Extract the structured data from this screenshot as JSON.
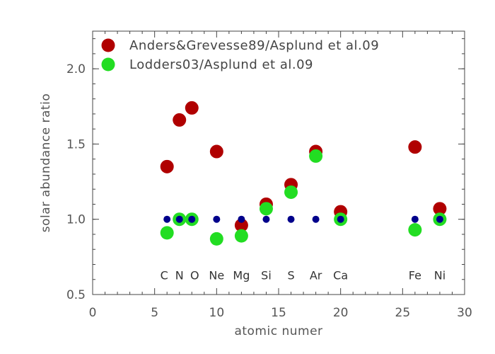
{
  "chart_data": {
    "type": "scatter",
    "xlabel": "atomic numer",
    "ylabel": "solar abundance ratio",
    "xlim": [
      0,
      30
    ],
    "ylim": [
      0.5,
      2.25
    ],
    "x_ticks": [
      0,
      5,
      10,
      15,
      20,
      25,
      30
    ],
    "y_ticks": [
      0.5,
      1.0,
      1.5,
      2.0
    ],
    "y_tick_labels": [
      "0.5",
      "1.0",
      "1.5",
      "2.0"
    ],
    "legend_position": "top-left",
    "element_labels": [
      {
        "x": 6,
        "text": "C"
      },
      {
        "x": 7,
        "text": "N"
      },
      {
        "x": 8,
        "text": "O"
      },
      {
        "x": 10,
        "text": "Ne"
      },
      {
        "x": 12,
        "text": "Mg"
      },
      {
        "x": 14,
        "text": "Si"
      },
      {
        "x": 16,
        "text": "S"
      },
      {
        "x": 18,
        "text": "Ar"
      },
      {
        "x": 20,
        "text": "Ca"
      },
      {
        "x": 26,
        "text": "Fe"
      },
      {
        "x": 28,
        "text": "Ni"
      }
    ],
    "element_label_y": 0.63,
    "series": [
      {
        "name": "Anders&Grevesse89/Asplund et al.09",
        "color": "#b00000",
        "x": [
          6,
          7,
          8,
          10,
          12,
          14,
          16,
          18,
          20,
          26,
          28
        ],
        "y": [
          1.35,
          1.66,
          1.74,
          1.45,
          0.96,
          1.1,
          1.23,
          1.45,
          1.05,
          1.48,
          1.07
        ]
      },
      {
        "name": "Lodders03/Asplund et al.09",
        "color": "#22dd22",
        "x": [
          6,
          7,
          8,
          10,
          12,
          14,
          16,
          18,
          20,
          26,
          28
        ],
        "y": [
          0.91,
          1.0,
          1.0,
          0.87,
          0.89,
          1.07,
          1.18,
          1.42,
          1.0,
          0.93,
          1.0
        ]
      },
      {
        "color": "#00008b",
        "x": [
          6,
          7,
          8,
          10,
          12,
          14,
          16,
          18,
          20,
          26,
          28
        ],
        "y": [
          1.0,
          1.0,
          1.0,
          1.0,
          1.0,
          1.0,
          1.0,
          1.0,
          1.0,
          1.0,
          1.0
        ]
      }
    ]
  }
}
